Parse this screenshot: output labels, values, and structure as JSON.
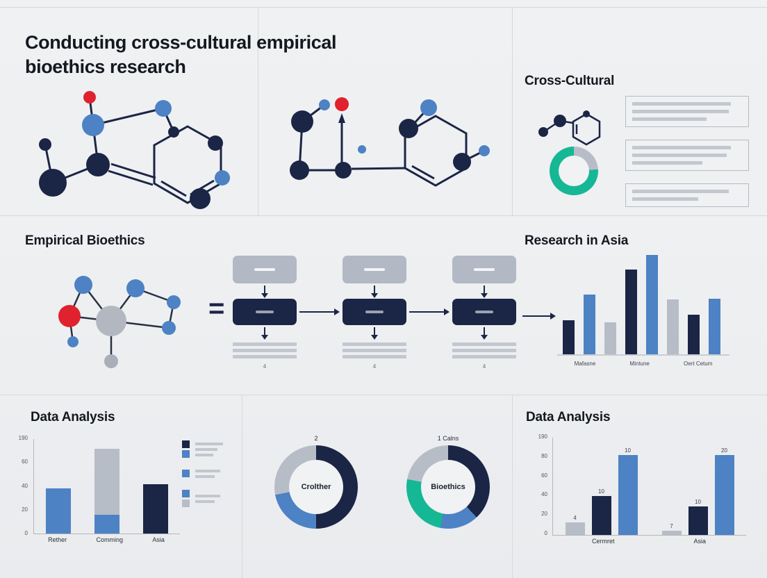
{
  "palette": {
    "navy": "#1b2545",
    "blue": "#4d82c4",
    "gray": "#b7bdc7",
    "teal": "#16b795",
    "red": "#e0212e",
    "line_gray": "#c5cad2",
    "heading": "#14181f"
  },
  "title": "Conducting cross-cultural empirical bioethics research",
  "cross_cultural": {
    "heading": "Cross-Cultural",
    "donut": {
      "segments": [
        {
          "color": "gray",
          "value": 24
        },
        {
          "color": "teal",
          "value": 76
        }
      ]
    },
    "cards": [
      {
        "lines": [
          90,
          88,
          68
        ]
      },
      {
        "lines": [
          90,
          86,
          64
        ]
      },
      {
        "lines": [
          88,
          60
        ]
      }
    ]
  },
  "empirical": {
    "heading": "Empirical Bioethics"
  },
  "flow": {
    "equals_sign": "=",
    "columns": [
      {
        "caption": "4"
      },
      {
        "caption": "4"
      },
      {
        "caption": "4"
      }
    ]
  },
  "research_asia": {
    "heading": "Research in Asia",
    "type": "bar",
    "bars": [
      {
        "color": "navy",
        "value": 34
      },
      {
        "color": "blue",
        "value": 60
      },
      {
        "color": "gray",
        "value": 32
      },
      {
        "color": "navy",
        "value": 85
      },
      {
        "color": "blue",
        "value": 100
      },
      {
        "color": "gray",
        "value": 55
      },
      {
        "color": "navy",
        "value": 40
      },
      {
        "color": "blue",
        "value": 56
      }
    ],
    "x_labels": [
      "Mafasne",
      "Mintune",
      "Oert Cetum"
    ]
  },
  "data_analysis_left": {
    "heading": "Data Analysis",
    "type": "stacked-bar",
    "y_ticks": [
      "190",
      "60",
      "40",
      "20",
      "0"
    ],
    "bars": [
      {
        "category": "Rether",
        "segments": [
          {
            "color": "blue",
            "value": 48
          }
        ]
      },
      {
        "category": "Comming",
        "segments": [
          {
            "color": "blue",
            "value": 20
          },
          {
            "color": "gray",
            "value": 70
          }
        ]
      },
      {
        "category": "Asia",
        "segments": [
          {
            "color": "navy",
            "value": 52
          }
        ]
      }
    ],
    "legend": [
      {
        "chips": [
          "navy",
          "blue"
        ],
        "lines": [
          40,
          32,
          26
        ]
      },
      {
        "chips": [
          "blue"
        ],
        "lines": [
          36,
          28
        ]
      },
      {
        "chips": [
          "blue",
          "gray"
        ],
        "lines": [
          36,
          28
        ]
      }
    ]
  },
  "donut_charts": [
    {
      "top_label": "2",
      "center_label": "Crolther",
      "segments": [
        {
          "color": "navy",
          "value": 50
        },
        {
          "color": "blue",
          "value": 22
        },
        {
          "color": "gray",
          "value": 28
        }
      ]
    },
    {
      "top_label": "1 Calns",
      "center_label": "Bioethics",
      "segments": [
        {
          "color": "navy",
          "value": 38
        },
        {
          "color": "blue",
          "value": 15
        },
        {
          "color": "teal",
          "value": 25
        },
        {
          "color": "gray",
          "value": 22
        }
      ]
    }
  ],
  "data_analysis_right": {
    "heading": "Data Analysis",
    "type": "grouped-bar",
    "y_ticks": [
      "190",
      "80",
      "60",
      "40",
      "20",
      "0"
    ],
    "groups": [
      {
        "category": "Cermret",
        "bars": [
          {
            "color": "gray",
            "value": 13,
            "label": "4"
          },
          {
            "color": "navy",
            "value": 40,
            "label": "10"
          },
          {
            "color": "blue",
            "value": 82,
            "label": "10"
          }
        ]
      },
      {
        "category": "Asia",
        "bars": [
          {
            "color": "gray",
            "value": 4,
            "label": "7"
          },
          {
            "color": "navy",
            "value": 29,
            "label": "10"
          },
          {
            "color": "blue",
            "value": 82,
            "label": "20"
          }
        ]
      }
    ]
  }
}
